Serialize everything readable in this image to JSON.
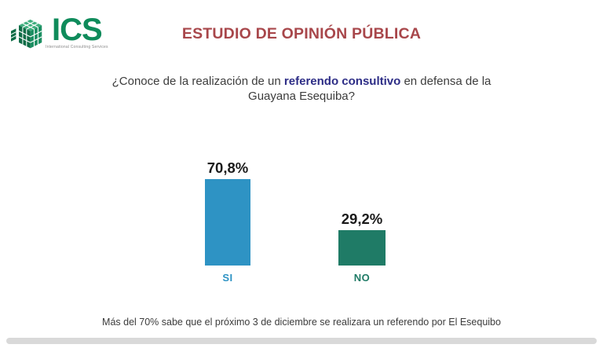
{
  "logo": {
    "text": "ICS",
    "subtitle": "International Consulting Services",
    "icon": "ics-cube-logo",
    "green": "#0F8B5B",
    "green_dark": "#0D6B45",
    "green_mid": "#1B8F62",
    "green_light": "#3FAE7E"
  },
  "header": {
    "title": "ESTUDIO DE OPINIÓN PÚBLICA",
    "title_color": "#A8474B"
  },
  "question": {
    "prefix": "¿Conoce de la realización de un ",
    "highlight": "referendo consultivo",
    "suffix": " en defensa de la",
    "line2": "Guayana Esequiba?",
    "highlight_color": "#2D2D86"
  },
  "chart_data": {
    "type": "bar",
    "categories": [
      "SI",
      "NO"
    ],
    "values": [
      70.8,
      29.2
    ],
    "value_labels": [
      "70,8%",
      "29,2%"
    ],
    "bar_colors": [
      "#2E93C4",
      "#1F7B66"
    ],
    "label_colors": [
      "#2E93C4",
      "#1F7B66"
    ],
    "title": "",
    "xlabel": "",
    "ylabel": "",
    "ylim": [
      0,
      80
    ],
    "grid": false,
    "legend": false,
    "axes_visible": false
  },
  "footer": {
    "note": "Más del 70% sabe que el próximo 3 de diciembre se realizara un referendo por El Esequibo"
  }
}
